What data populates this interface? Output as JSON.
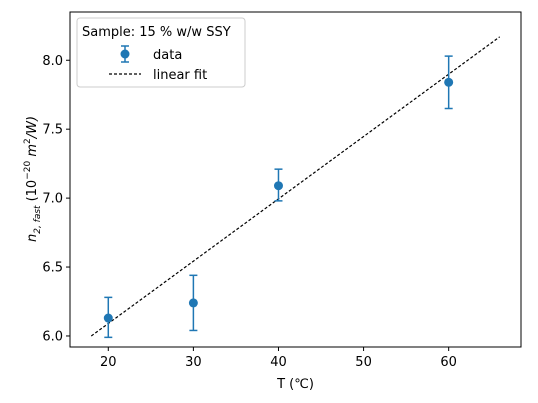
{
  "chart_data": {
    "type": "scatter",
    "xlabel": "T (℃)",
    "ylabel_main": "n",
    "ylabel_sub": "2, fast",
    "ylabel_units_prefix": "(10",
    "ylabel_units_exp": "−20",
    "ylabel_units_mid": " m",
    "ylabel_units_exp2": "2",
    "ylabel_units_suffix": "/W)",
    "xlim": [
      15.5,
      68.5
    ],
    "ylim": [
      5.92,
      8.35
    ],
    "xticks": [
      20,
      30,
      40,
      50,
      60
    ],
    "yticks": [
      6.0,
      6.5,
      7.0,
      7.5,
      8.0
    ],
    "xtick_labels": [
      "20",
      "30",
      "40",
      "50",
      "60"
    ],
    "ytick_labels": [
      "6.0",
      "6.5",
      "7.0",
      "7.5",
      "8.0"
    ],
    "legend": {
      "title": "Sample: 15 % w/w SSY",
      "placement": "top-left",
      "entries": [
        "data",
        "linear fit"
      ]
    },
    "series": [
      {
        "name": "data",
        "kind": "errorbar",
        "color": "#1f77b4",
        "x": [
          20,
          30,
          40,
          60
        ],
        "y": [
          6.13,
          6.24,
          7.09,
          7.84
        ],
        "yerr_low": [
          0.14,
          0.2,
          0.11,
          0.19
        ],
        "yerr_high": [
          0.15,
          0.2,
          0.12,
          0.19
        ]
      },
      {
        "name": "linear fit",
        "kind": "line",
        "style": "dashed",
        "color": "#000000",
        "x": [
          18,
          66
        ],
        "y": [
          6.0,
          8.17
        ]
      }
    ],
    "grid": false
  }
}
